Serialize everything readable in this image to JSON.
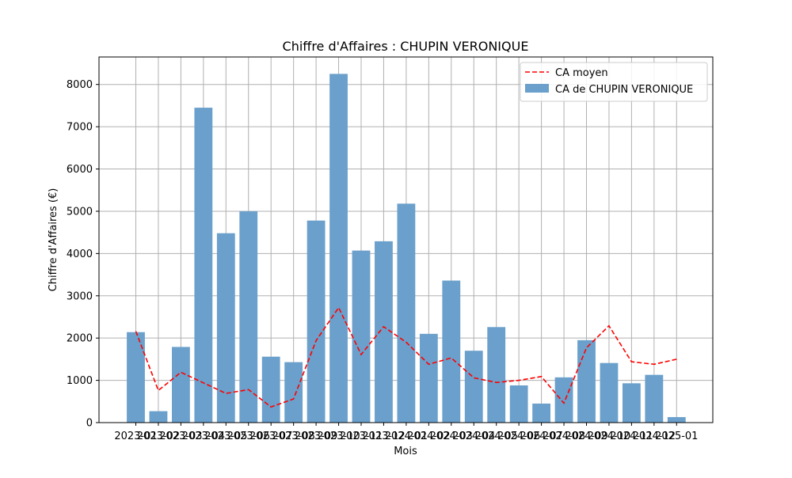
{
  "chart_data": {
    "type": "bar",
    "title": "Chiffre d'Affaires : CHUPIN VERONIQUE",
    "xlabel": "Mois",
    "ylabel": "Chiffre d'Affaires (€)",
    "ylim": [
      0,
      8650
    ],
    "yticks": [
      0,
      1000,
      2000,
      3000,
      4000,
      5000,
      6000,
      7000,
      8000
    ],
    "grid": true,
    "legend_position": "top-right",
    "categories": [
      "2023-01",
      "2023-02",
      "2023-03",
      "2023-04",
      "2023-05",
      "2023-06",
      "2023-07",
      "2023-08",
      "2023-09",
      "2023-10",
      "2023-11",
      "2023-12",
      "2024-01",
      "2024-02",
      "2024-03",
      "2024-04",
      "2024-05",
      "2024-06",
      "2024-07",
      "2024-08",
      "2024-09",
      "2024-10",
      "2024-11",
      "2024-12",
      "2025-01"
    ],
    "series": [
      {
        "name": "CA de CHUPIN VERONIQUE",
        "kind": "bar",
        "color": "#6aa0cb",
        "values": [
          2140,
          270,
          1790,
          7450,
          4480,
          5000,
          1560,
          1430,
          4780,
          8250,
          4070,
          4290,
          5180,
          2100,
          3360,
          1700,
          2260,
          880,
          450,
          1070,
          1950,
          1410,
          930,
          1130,
          130
        ]
      },
      {
        "name": "CA moyen",
        "kind": "line",
        "style": "dashed",
        "color": "#ff0000",
        "values": [
          2160,
          760,
          1190,
          940,
          690,
          780,
          370,
          560,
          1940,
          2720,
          1610,
          2270,
          1900,
          1380,
          1530,
          1060,
          950,
          1000,
          1090,
          460,
          1770,
          2290,
          1440,
          1380,
          1500
        ]
      }
    ]
  }
}
